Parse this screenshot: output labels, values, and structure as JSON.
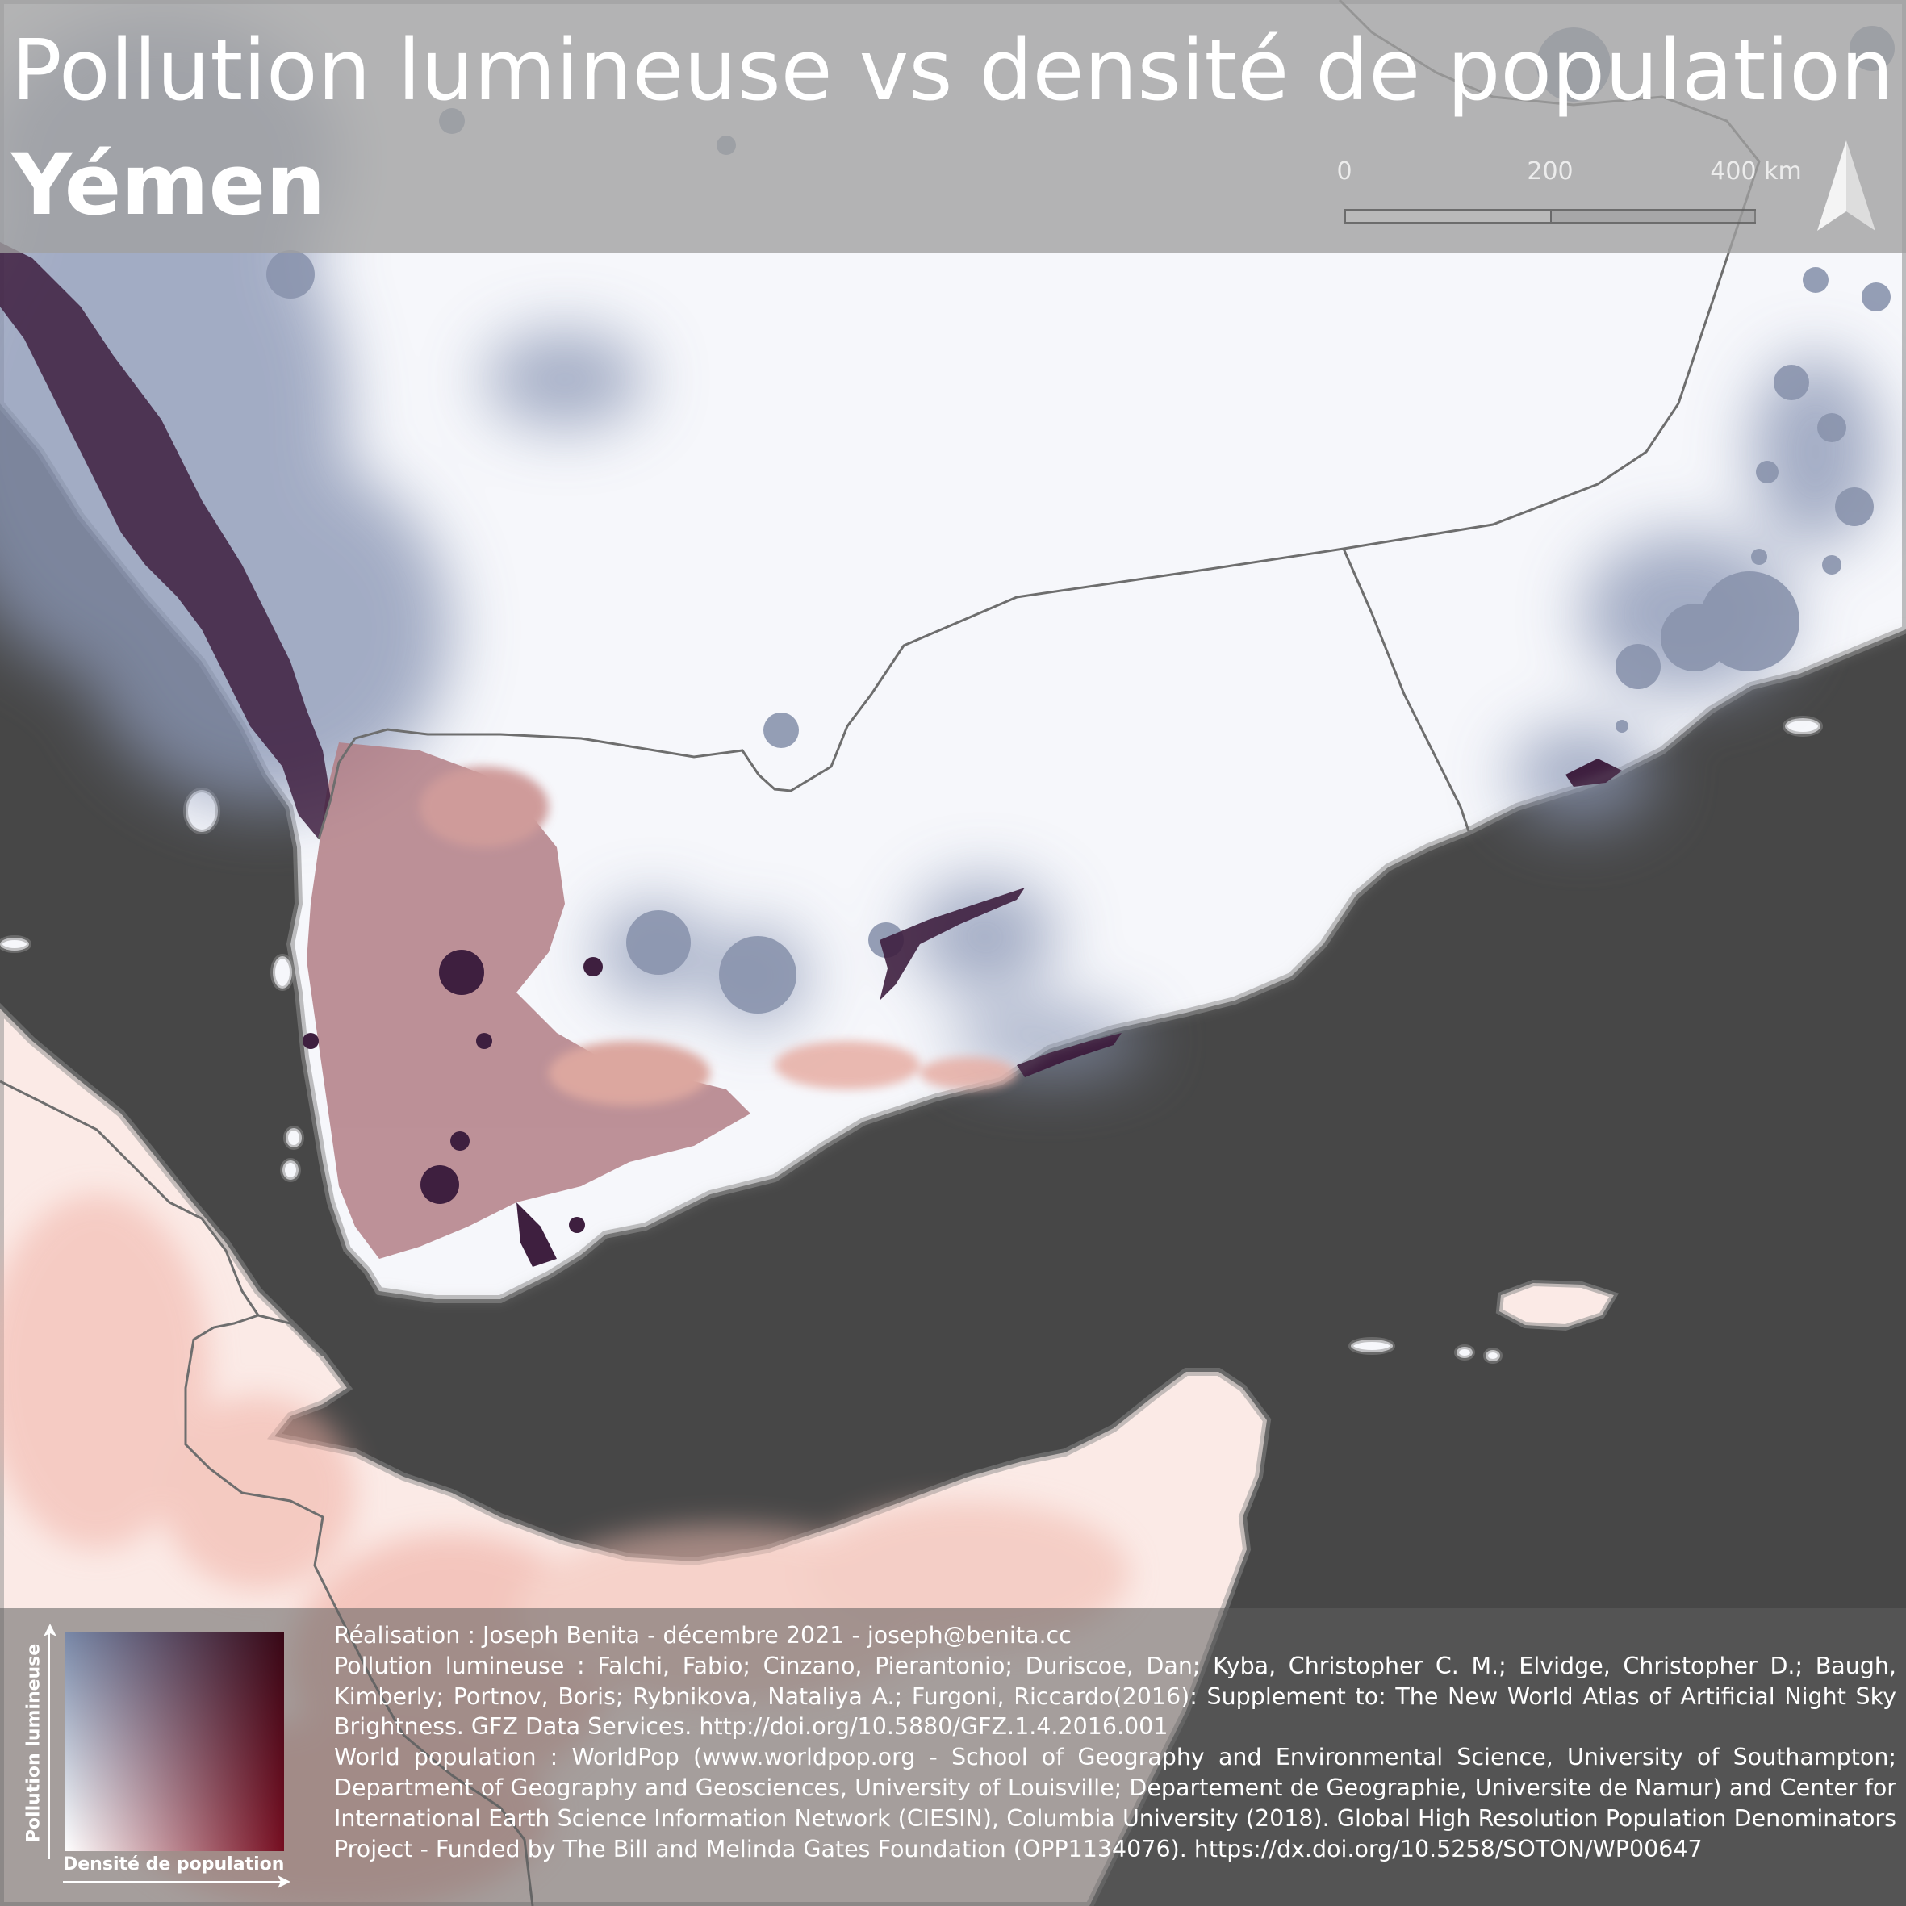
{
  "title": {
    "line1": "Pollution lumineuse vs densité de population",
    "line2": "Yémen"
  },
  "scalebar": {
    "ticks": [
      "0",
      "200",
      "400 km"
    ]
  },
  "north_arrow": {
    "icon": "north-arrow-icon"
  },
  "legend": {
    "y_label": "Pollution lumineuse",
    "x_label": "Densité de population",
    "colors": {
      "low_low": "#ffffff",
      "high_light": "#7888a8",
      "high_density": "#7a0a1e",
      "high_both": "#2e1436"
    }
  },
  "credits": {
    "author": "Réalisation : Joseph Benita - décembre 2021 - joseph@benita.cc",
    "light_source": "Pollution lumineuse : Falchi, Fabio; Cinzano, Pierantonio; Duriscoe, Dan; Kyba, Christopher C. M.; Elvidge, Christopher D.; Baugh, Kimberly; Portnov, Boris; Rybnikova, Nataliya A.; Furgoni, Riccardo(2016): Supplement to: The New World Atlas of Artificial Night Sky Brightness. GFZ Data Services. http://doi.org/10.5880/GFZ.1.4.2016.001",
    "population_source": "World population : WorldPop (www.worldpop.org - School of Geography and Environmental Science, University of Southampton; Department of Geography and Geosciences, University of Louisville; Departement de Geographie, Universite de Namur) and Center for International Earth Science Information Network (CIESIN), Columbia University (2018). Global High Resolution Population Denominators Project - Funded by The Bill and Melinda Gates Foundation (OPP1134076). https://dx.doi.org/10.5258/SOTON/WP00647"
  },
  "colors": {
    "sea": "#474747",
    "land": "#f6f7fb",
    "border": "#6e6e6e"
  }
}
